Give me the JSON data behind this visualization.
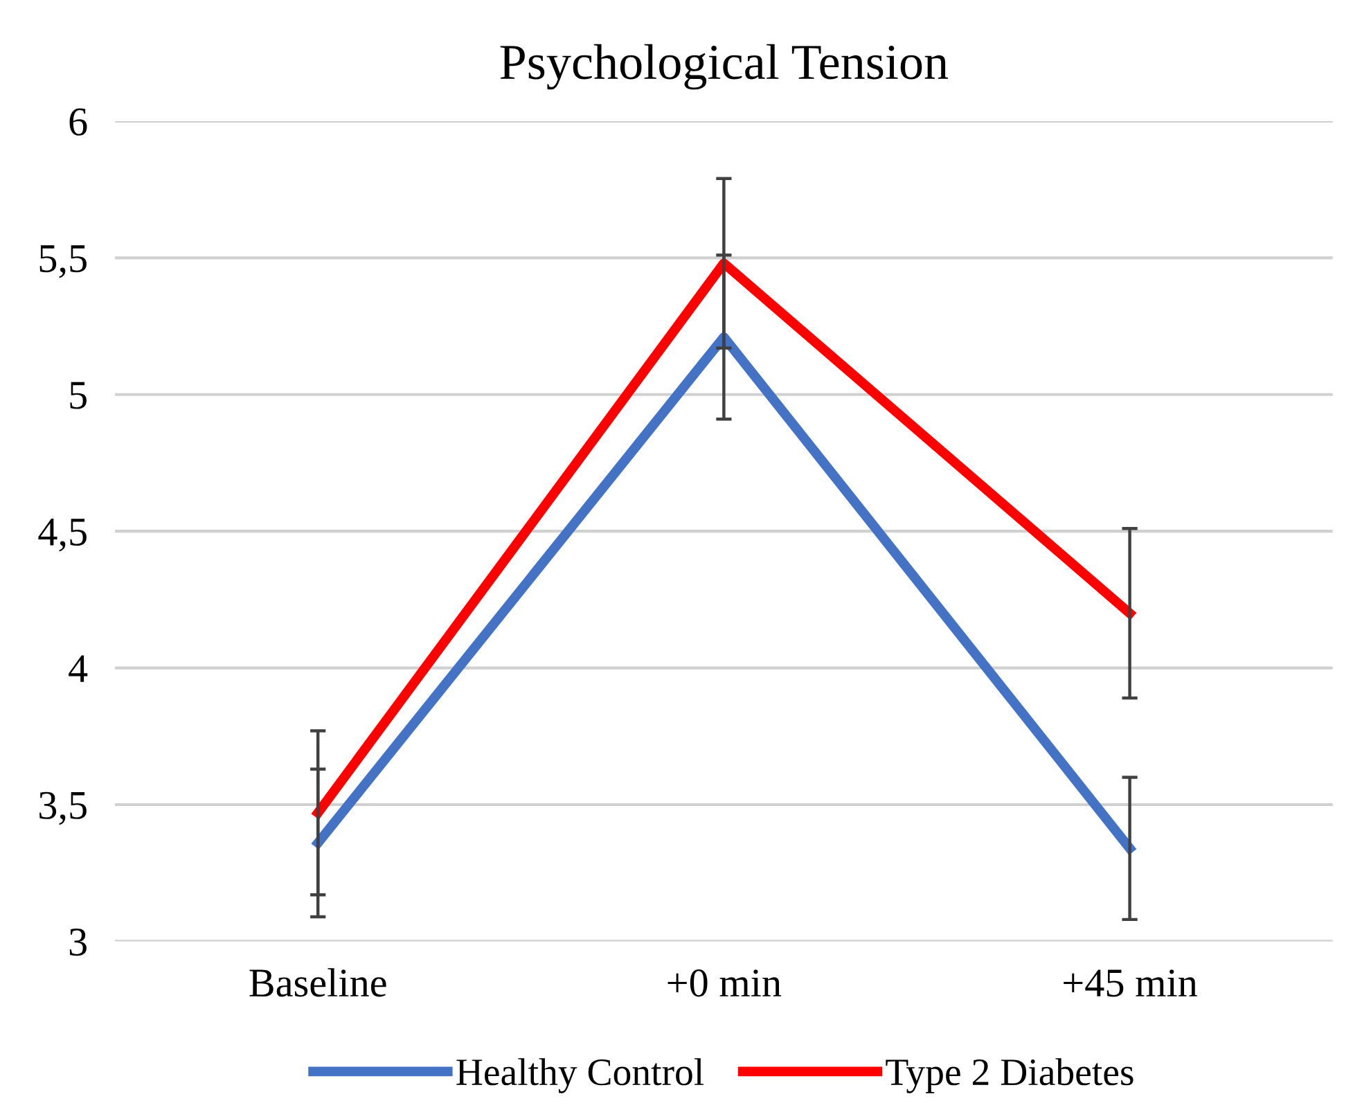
{
  "chart_data": {
    "type": "line",
    "title": "Psychological Tension",
    "categories": [
      "Baseline",
      "+0 min",
      "+45 min"
    ],
    "series": [
      {
        "name": "Healthy Control",
        "color": "#4472c4",
        "values": [
          3.36,
          5.21,
          3.34
        ],
        "errors": [
          0.27,
          0.3,
          0.26
        ]
      },
      {
        "name": "Type 2 Diabetes",
        "color": "#ff0000",
        "values": [
          3.47,
          5.48,
          4.2
        ],
        "errors": [
          0.3,
          0.31,
          0.31
        ]
      }
    ],
    "ylim": [
      3,
      6
    ],
    "yticks": [
      3,
      {
        "value": 3.5,
        "label": "3,5"
      },
      4,
      {
        "value": 4.5,
        "label": "4,5"
      },
      5,
      {
        "value": 5.5,
        "label": "5,5"
      },
      6
    ],
    "grid": "y",
    "legend": "bottom",
    "marker": "none",
    "line_style": "solid"
  }
}
